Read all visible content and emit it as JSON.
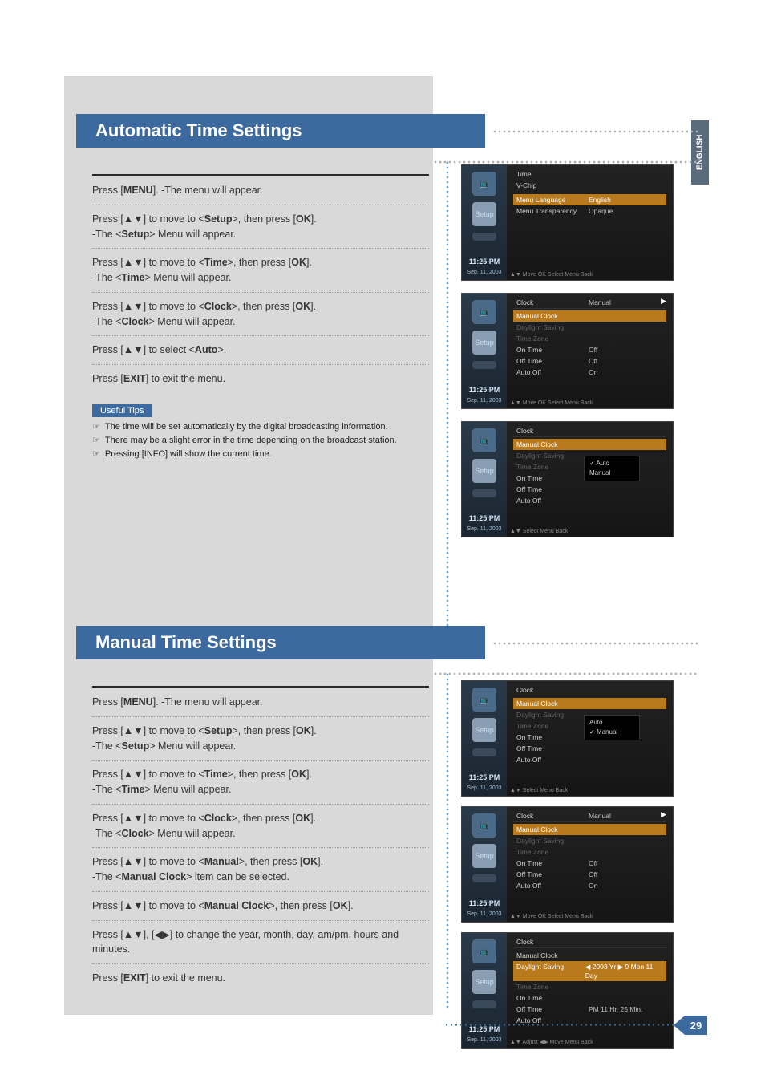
{
  "lang_tab": "ENGLISH",
  "page_number": "29",
  "section1": {
    "title": "Automatic Time Settings",
    "steps": [
      "Press [<b>MENU</b>]. -The menu will appear.",
      "Press [▲▼] to move to <<b>Setup</b>>, then press [<b>OK</b>].<br>-The <<b>Setup</b>> Menu will appear.",
      "Press [▲▼] to move to <<b>Time</b>>, then press [<b>OK</b>].<br>-The <<b>Time</b>> Menu will appear.",
      "Press [▲▼] to move to <<b>Clock</b>>, then press [<b>OK</b>].<br>-The <<b>Clock</b>> Menu will appear.",
      "Press [▲▼] to select <<b>Auto</b>>.",
      "Press [<b>EXIT</b>] to exit the menu."
    ],
    "tips_label": "Useful Tips",
    "tips": [
      "The time will be set automatically by the digital broadcasting information.",
      "There may be a slight error in the time depending on the broadcast station.",
      "Pressing [INFO] will show the current time."
    ]
  },
  "section2": {
    "title": "Manual Time Settings",
    "steps": [
      "Press [<b>MENU</b>]. -The menu will appear.",
      "Press [▲▼] to move to <<b>Setup</b>>, then press [<b>OK</b>].<br>-The <<b>Setup</b>> Menu will appear.",
      "Press [▲▼] to move to <<b>Time</b>>, then press [<b>OK</b>].<br>-The <<b>Time</b>> Menu will appear.",
      "Press [▲▼] to move to <<b>Clock</b>>, then press [<b>OK</b>].<br>-The <<b>Clock</b>> Menu will appear.",
      "Press [▲▼] to move to <<b>Manual</b>>, then press [<b>OK</b>].<br>-The <<b>Manual Clock</b>> item can be selected.",
      "Press [▲▼] to move to <<b>Manual Clock</b>>, then press [<b>OK</b>].",
      "Press [▲▼], [◀▶] to change the year, month, day, am/pm, hours and minutes.",
      "Press [<b>EXIT</b>] to exit the menu."
    ]
  },
  "osd": {
    "time": "11:25 PM",
    "date": "Sep. 11, 2003",
    "setup_icon": "Setup",
    "foot_nav": "▲▼ Move  OK Select  Menu Back",
    "foot_sel": "▲▼ Select  Menu Back",
    "foot_adj": "▲▼ Adjust  ◀▶ Move  Menu Back",
    "a1": {
      "rows": [
        {
          "k": "Time",
          "v": "",
          "cls": ""
        },
        {
          "k": "V-Chip",
          "v": "",
          "cls": ""
        },
        {
          "k": "",
          "v": "",
          "cls": "dim"
        },
        {
          "k": "Menu Language",
          "v": "English",
          "cls": "hl"
        },
        {
          "k": "Menu Transparency",
          "v": "Opaque",
          "cls": ""
        }
      ]
    },
    "a2": {
      "title": "Clock",
      "title_v": "Manual",
      "rows": [
        {
          "k": "Manual Clock",
          "v": "",
          "cls": "hl"
        },
        {
          "k": "Daylight Saving",
          "v": "",
          "cls": "dim"
        },
        {
          "k": "Time Zone",
          "v": "",
          "cls": "dim"
        },
        {
          "k": "On Time",
          "v": "Off",
          "cls": ""
        },
        {
          "k": "Off Time",
          "v": "Off",
          "cls": ""
        },
        {
          "k": "Auto Off",
          "v": "On",
          "cls": ""
        }
      ]
    },
    "a3": {
      "title": "Clock",
      "rows": [
        {
          "k": "Manual Clock",
          "v": "",
          "cls": "hl"
        },
        {
          "k": "Daylight Saving",
          "v": "",
          "cls": "dim"
        },
        {
          "k": "Time Zone",
          "v": "",
          "cls": "dim"
        },
        {
          "k": "On Time",
          "v": "",
          "cls": ""
        },
        {
          "k": "Off Time",
          "v": "",
          "cls": ""
        },
        {
          "k": "Auto Off",
          "v": "",
          "cls": ""
        }
      ],
      "popup": [
        "Auto",
        "Manual"
      ],
      "popup_sel": 0
    },
    "b1": {
      "title": "Clock",
      "rows": [
        {
          "k": "Manual Clock",
          "v": "",
          "cls": "hl"
        },
        {
          "k": "Daylight Saving",
          "v": "",
          "cls": "dim"
        },
        {
          "k": "Time Zone",
          "v": "",
          "cls": "dim"
        },
        {
          "k": "On Time",
          "v": "",
          "cls": ""
        },
        {
          "k": "Off Time",
          "v": "",
          "cls": ""
        },
        {
          "k": "Auto Off",
          "v": "",
          "cls": ""
        }
      ],
      "popup": [
        "Auto",
        "Manual"
      ],
      "popup_sel": 1
    },
    "b2": {
      "title": "Clock",
      "title_v": "Manual",
      "rows": [
        {
          "k": "Manual Clock",
          "v": "",
          "cls": "hl"
        },
        {
          "k": "Daylight Saving",
          "v": "",
          "cls": "dim"
        },
        {
          "k": "Time Zone",
          "v": "",
          "cls": "dim"
        },
        {
          "k": "On Time",
          "v": "Off",
          "cls": ""
        },
        {
          "k": "Off Time",
          "v": "Off",
          "cls": ""
        },
        {
          "k": "Auto Off",
          "v": "On",
          "cls": ""
        }
      ]
    },
    "b3": {
      "title": "Clock",
      "rows": [
        {
          "k": "Manual Clock",
          "v": "",
          "cls": ""
        },
        {
          "k": "Daylight Saving",
          "v": "◀ 2003 Yr ▶    9 Mon    11 Day",
          "cls": "hl"
        },
        {
          "k": "Time Zone",
          "v": "",
          "cls": "dim"
        },
        {
          "k": "On Time",
          "v": "",
          "cls": ""
        },
        {
          "k": "Off Time",
          "v": "PM        11 Hr.     25 Min.",
          "cls": ""
        },
        {
          "k": "Auto Off",
          "v": "",
          "cls": ""
        }
      ]
    }
  }
}
